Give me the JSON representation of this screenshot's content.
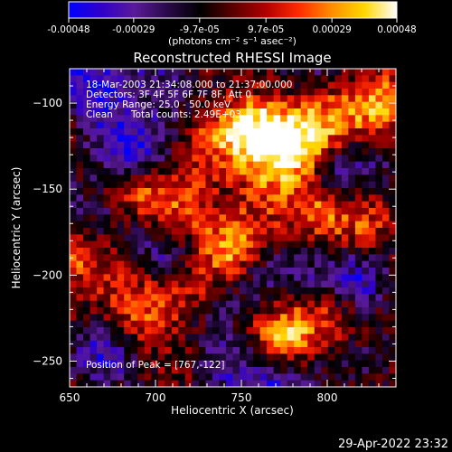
{
  "chart_data": {
    "type": "heatmap",
    "title": "Reconstructed RHESSI Image",
    "xlabel": "Heliocentric X (arcsec)",
    "ylabel": "Heliocentric Y (arcsec)",
    "xlim": [
      650,
      840
    ],
    "ylim": [
      -265,
      -80
    ],
    "x_ticks": [
      650,
      700,
      750,
      800
    ],
    "y_ticks": [
      -100,
      -150,
      -200,
      -250
    ],
    "colorbar": {
      "label": "(photons cm⁻² s⁻¹ asec⁻²)",
      "range": [
        -0.00048,
        0.00048
      ],
      "tick_values": [
        -0.00048,
        -0.00029,
        -9.7e-05,
        9.7e-05,
        0.00029,
        0.00048
      ],
      "tick_labels": [
        "-0.00048",
        "-0.00029",
        "-9.7e-05",
        "9.7e-05",
        "0.00029",
        "0.00048"
      ],
      "colormap": [
        "#0000ff",
        "#3000c8",
        "#5a1a9a",
        "#2a0a4a",
        "#000000",
        "#5a0000",
        "#b00000",
        "#ff2a00",
        "#ff8c00",
        "#ffd700",
        "#ffffff"
      ]
    },
    "annotations": [
      "18-Mar-2003 21:34:08.000 to 21:37:00.000",
      "Detectors: 3F 4F 5F 6F 7F 8F, Att 0",
      "Energy Range: 25.0 - 50.0 keV",
      "Clean",
      "Total counts: 2.49E+03"
    ],
    "peak_label": "Position of Peak = [767,-122]",
    "peak": {
      "x": 767,
      "y": -122
    },
    "grid_cols": 48,
    "grid_rows": 48,
    "pattern_seed": 12345,
    "hotspots": [
      {
        "x": 757,
        "y": -117,
        "v": 1.0
      },
      {
        "x": 782,
        "y": -125,
        "v": 0.9
      },
      {
        "x": 738,
        "y": -112,
        "v": 0.55
      },
      {
        "x": 805,
        "y": -108,
        "v": 0.6
      },
      {
        "x": 830,
        "y": -102,
        "v": 0.55
      },
      {
        "x": 655,
        "y": -190,
        "v": 0.8
      },
      {
        "x": 688,
        "y": -150,
        "v": 0.6
      },
      {
        "x": 712,
        "y": -165,
        "v": 0.75
      },
      {
        "x": 765,
        "y": -150,
        "v": 0.7
      },
      {
        "x": 795,
        "y": -160,
        "v": 0.6
      },
      {
        "x": 745,
        "y": -185,
        "v": 0.7
      },
      {
        "x": 775,
        "y": -235,
        "v": 0.65
      },
      {
        "x": 690,
        "y": -225,
        "v": 0.55
      },
      {
        "x": 720,
        "y": -210,
        "v": 0.5
      },
      {
        "x": 805,
        "y": -225,
        "v": 0.45
      },
      {
        "x": 828,
        "y": -175,
        "v": 0.5
      }
    ],
    "coldspots": [
      {
        "x": 665,
        "y": -95,
        "v": -0.7
      },
      {
        "x": 700,
        "y": -88,
        "v": -0.6
      },
      {
        "x": 690,
        "y": -130,
        "v": -0.65
      },
      {
        "x": 665,
        "y": -162,
        "v": -0.6
      },
      {
        "x": 805,
        "y": -145,
        "v": -0.55
      },
      {
        "x": 820,
        "y": -205,
        "v": -0.8
      },
      {
        "x": 780,
        "y": -270,
        "v": -0.6
      },
      {
        "x": 760,
        "y": -200,
        "v": -0.5
      },
      {
        "x": 705,
        "y": -190,
        "v": -0.55
      },
      {
        "x": 740,
        "y": -250,
        "v": -0.5
      },
      {
        "x": 668,
        "y": -250,
        "v": -0.45
      }
    ]
  },
  "footer": {
    "timestamp": "29-Apr-2022 23:32"
  }
}
